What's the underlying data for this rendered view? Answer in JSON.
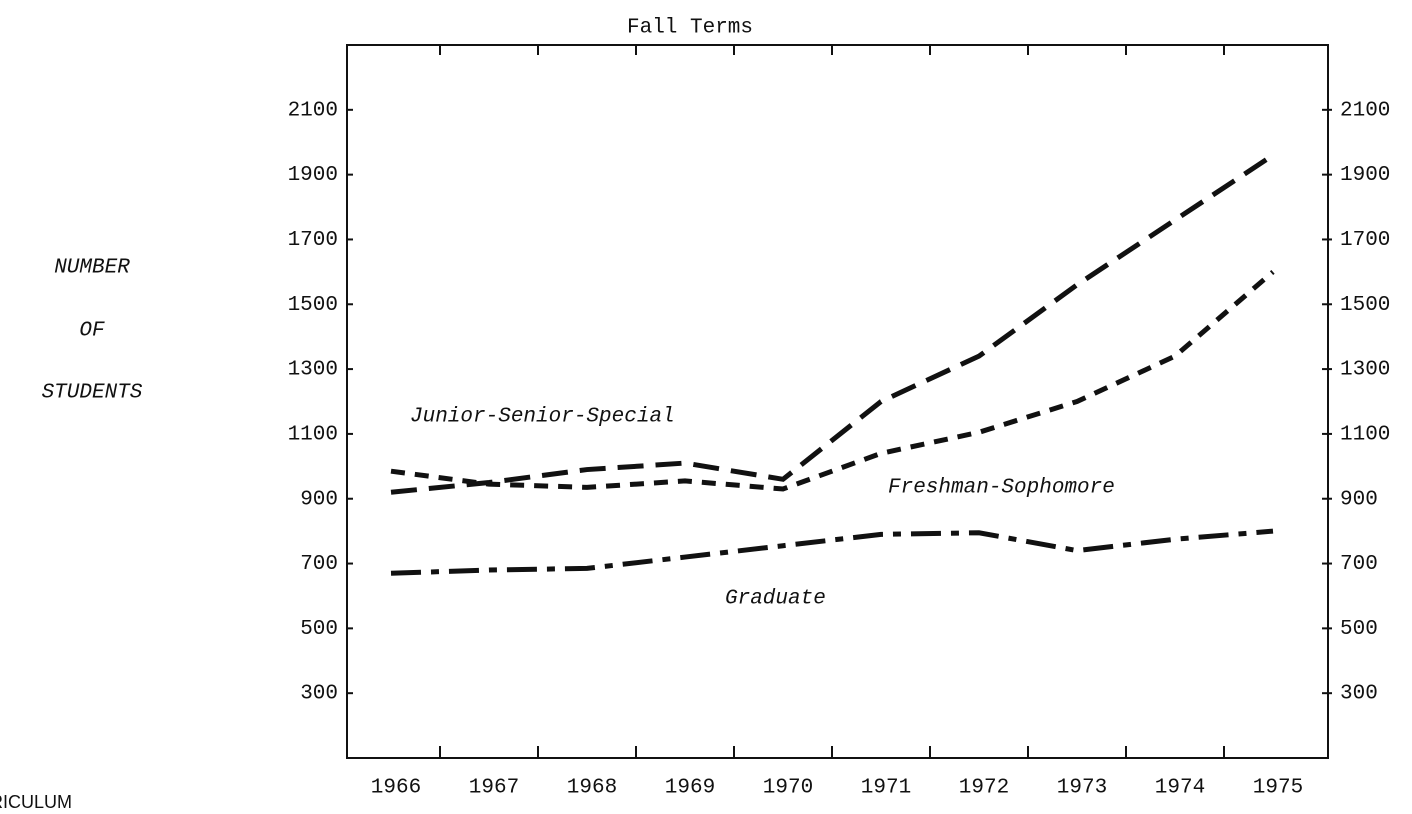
{
  "chart_data": {
    "type": "line",
    "title": "Fall Terms",
    "ylabel": [
      "NUMBER",
      "OF",
      "STUDENTS"
    ],
    "annotation": "RICULUM",
    "categories": [
      "1966",
      "1967",
      "1968",
      "1969",
      "1970",
      "1971",
      "1972",
      "1973",
      "1974",
      "1975"
    ],
    "series": [
      {
        "name": "Junior-Senior-Special",
        "color": "#111111",
        "dash": "26 12",
        "values": [
          920,
          950,
          990,
          1010,
          960,
          1200,
          1340,
          1560,
          1760,
          1960
        ]
      },
      {
        "name": "Freshman-Sophomore",
        "color": "#111111",
        "dash": "14 10",
        "values": [
          985,
          945,
          935,
          955,
          930,
          1040,
          1105,
          1200,
          1340,
          1600
        ]
      },
      {
        "name": "Graduate",
        "color": "#111111",
        "dash": "30 10 8 10",
        "values": [
          670,
          680,
          685,
          720,
          755,
          790,
          795,
          740,
          775,
          800
        ]
      }
    ],
    "ylim": [
      100,
      2300
    ],
    "yticks": [
      300,
      500,
      700,
      900,
      1100,
      1300,
      1500,
      1700,
      1900,
      2100
    ],
    "y2lim": [
      100,
      2300
    ],
    "y2ticks": [
      300,
      500,
      700,
      900,
      1100,
      1300,
      1500,
      1700,
      1900,
      2100
    ]
  }
}
